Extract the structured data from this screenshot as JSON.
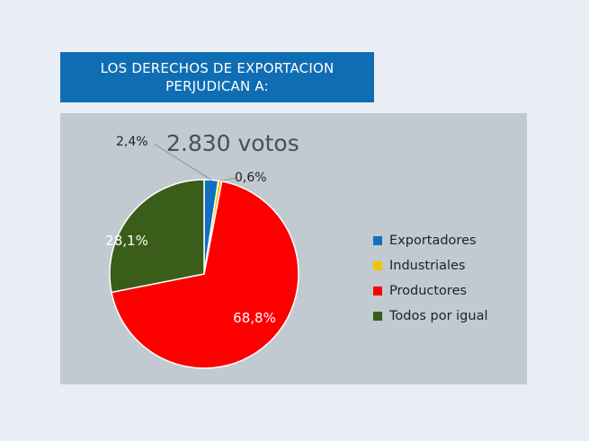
{
  "header": {
    "title_line1": "LOS DERECHOS DE EXPORTACION",
    "title_line2": "PERJUDICAN A:"
  },
  "chart_data": {
    "type": "pie",
    "annotation": "2.830 votos",
    "slices": [
      {
        "label": "Exportadores",
        "value": 2.4,
        "value_label": "2,4%",
        "color": "#1170c0"
      },
      {
        "label": "Industriales",
        "value": 0.6,
        "value_label": "0,6%",
        "color": "#f5c400"
      },
      {
        "label": "Productores",
        "value": 68.8,
        "value_label": "68,8%",
        "color": "#fc0000"
      },
      {
        "label": "Todos por igual",
        "value": 28.1,
        "value_label": "28,1%",
        "color": "#3a5d19"
      }
    ],
    "legend": {
      "position": "right"
    }
  }
}
